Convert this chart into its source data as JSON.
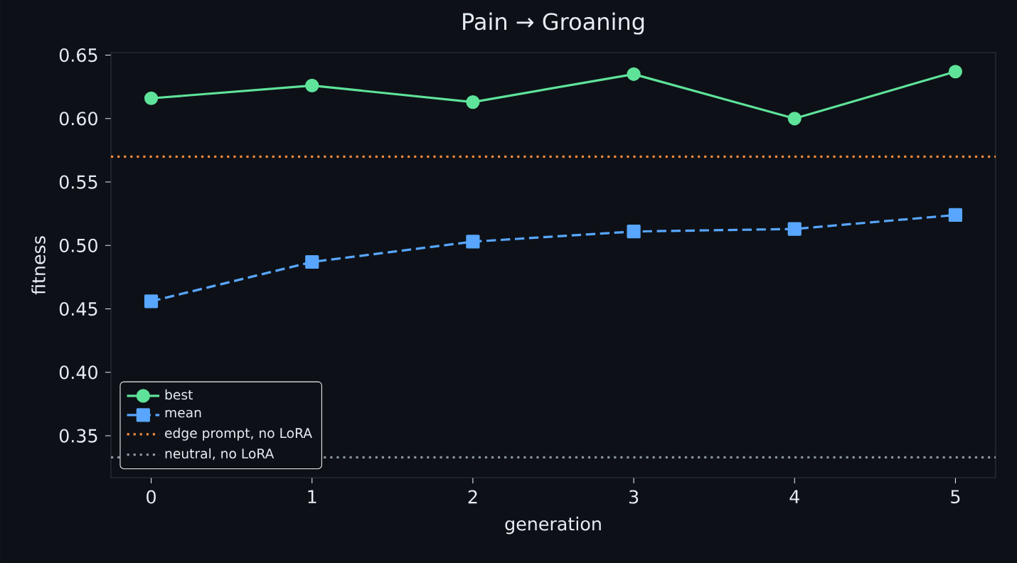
{
  "chart_data": {
    "type": "line",
    "title": "Pain → Groaning",
    "xlabel": "generation",
    "ylabel": "fitness",
    "x": [
      0,
      1,
      2,
      3,
      4,
      5
    ],
    "series": [
      {
        "name": "best",
        "color": "#5fe39a",
        "marker": "circle",
        "line_style": "solid",
        "values": [
          0.616,
          0.626,
          0.613,
          0.635,
          0.6,
          0.637
        ]
      },
      {
        "name": "mean",
        "color": "#58a6ff",
        "marker": "square",
        "line_style": "dashed",
        "values": [
          0.456,
          0.487,
          0.503,
          0.511,
          0.513,
          0.524
        ]
      }
    ],
    "ref_lines": [
      {
        "axis": "y",
        "value": 0.57,
        "label": "edge prompt, no LoRA",
        "color": "#f0883e",
        "line_style": "dotted"
      },
      {
        "axis": "y",
        "value": 0.333,
        "label": "neutral, no LoRA",
        "color": "#8b949e",
        "line_style": "dotted"
      }
    ],
    "xlim": [
      -0.25,
      5.25
    ],
    "ylim": [
      0.317,
      0.652
    ],
    "xticks": [
      0,
      1,
      2,
      3,
      4,
      5
    ],
    "yticks": [
      0.35,
      {
        "value": 0.4,
        "label": "0.40"
      },
      0.45,
      {
        "value": 0.5,
        "label": "0.50"
      },
      0.55,
      {
        "value": 0.6,
        "label": "0.60"
      },
      0.65
    ],
    "grid": false,
    "legend": "bottom left"
  }
}
